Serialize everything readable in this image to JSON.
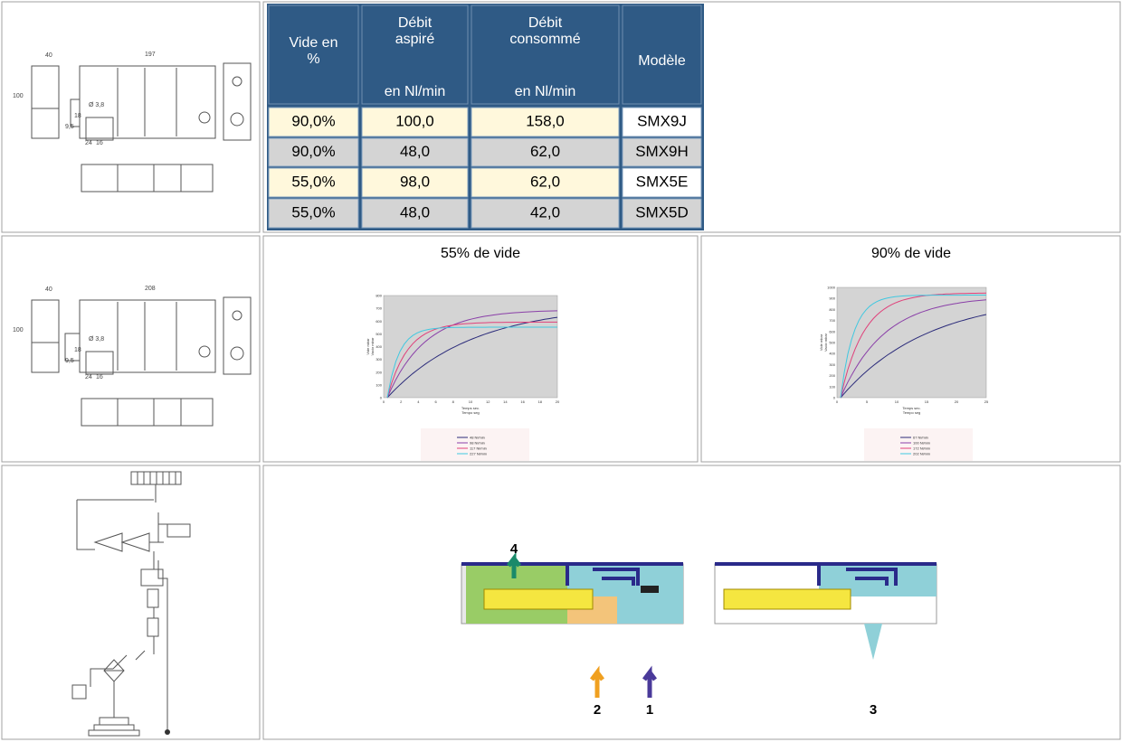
{
  "table": {
    "header": [
      [
        "Vide en",
        "%"
      ],
      [
        "Débit",
        "aspiré",
        "en Nl/min"
      ],
      [
        "Débit",
        "consommé",
        "en Nl/min"
      ],
      [
        "Modèle"
      ]
    ],
    "rows": [
      [
        "90,0%",
        "100,0",
        "158,0",
        "SMX9J"
      ],
      [
        "90,0%",
        "48,0",
        "62,0",
        "SMX9H"
      ],
      [
        "55,0%",
        "98,0",
        "62,0",
        "SMX5E"
      ],
      [
        "55,0%",
        "48,0",
        "42,0",
        "SMX5D"
      ]
    ]
  },
  "graphs": [
    {
      "title": "55% de vide",
      "y_label": [
        "Vide mbar",
        "Vacio mbar"
      ],
      "x_label": [
        "Temps sec.",
        "Tempo seg"
      ],
      "yticks": [
        "0",
        "100",
        "200",
        "300",
        "400",
        "500",
        "600",
        "700",
        "800"
      ],
      "xticks": [
        "0",
        "2",
        "4",
        "6",
        "8",
        "10",
        "12",
        "14",
        "16",
        "18",
        "20"
      ],
      "legend": [
        "48 Nl/min",
        "98 Nl/min",
        "117 Nl/min",
        "227 Nl/min"
      ]
    },
    {
      "title": "90% de vide",
      "y_label": [
        "Vide mbar",
        "Vacio mbar"
      ],
      "x_label": [
        "Temps sec.",
        "Tempo seg"
      ],
      "yticks": [
        "0",
        "100",
        "200",
        "300",
        "400",
        "500",
        "600",
        "700",
        "800",
        "900",
        "1000"
      ],
      "xticks": [
        "0",
        "5",
        "10",
        "15",
        "20",
        "25"
      ],
      "legend": [
        "67 Nl/min",
        "100 Nl/min",
        "172 Nl/min",
        "202 Nl/min"
      ]
    }
  ],
  "drawings": [
    {
      "dims": [
        "40",
        "197",
        "100",
        "Ø 3,8",
        "18",
        "9,5",
        "24",
        "16"
      ]
    },
    {
      "dims": [
        "40",
        "208",
        "100",
        "Ø 3,8",
        "18",
        "9,5",
        "24",
        "16"
      ]
    }
  ],
  "cutaway": {
    "ports": [
      "4",
      "2",
      "1",
      "3"
    ]
  }
}
